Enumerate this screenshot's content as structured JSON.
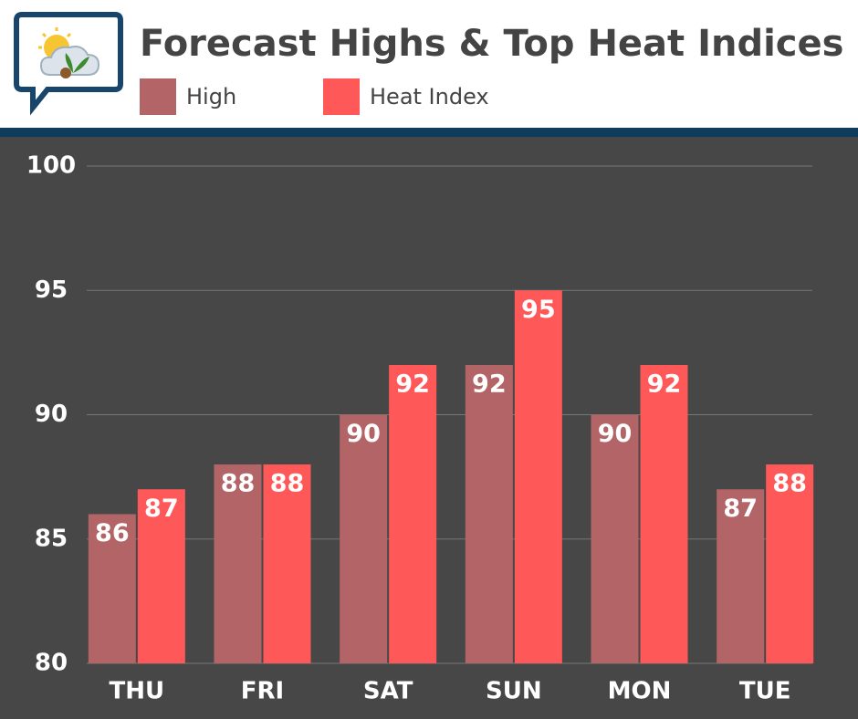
{
  "chart_data": {
    "type": "bar",
    "title": "Forecast Highs & Top Heat Indices",
    "categories": [
      "THU",
      "FRI",
      "SAT",
      "SUN",
      "MON",
      "TUE"
    ],
    "series": [
      {
        "name": "High",
        "color": "#b36466",
        "values": [
          86,
          88,
          90,
          92,
          90,
          87
        ]
      },
      {
        "name": "Heat Index",
        "color": "#ff5859",
        "values": [
          87,
          88,
          92,
          95,
          92,
          88
        ]
      }
    ],
    "ylim": [
      80,
      100
    ],
    "yticks": [
      80,
      85,
      90,
      95,
      100
    ],
    "grid": true
  }
}
